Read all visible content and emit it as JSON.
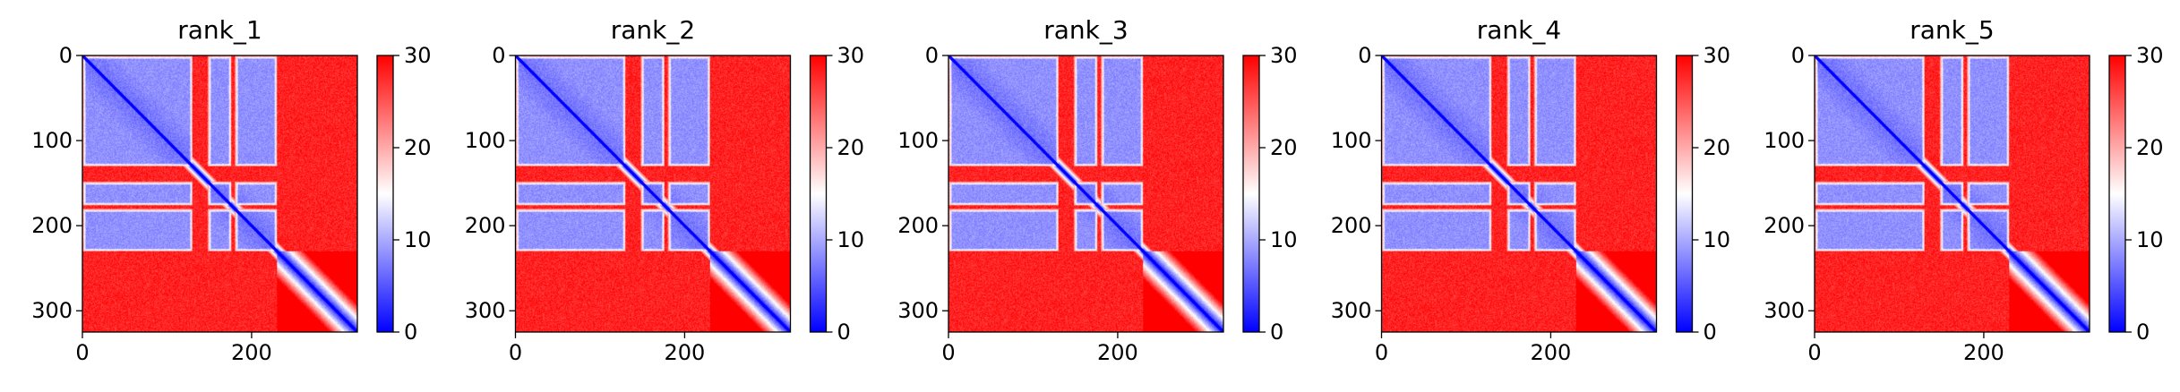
{
  "chart_data": [
    {
      "type": "heatmap",
      "title": "rank_1",
      "xlabel": "",
      "ylabel": "",
      "x_ticks": [
        0,
        200
      ],
      "y_ticks": [
        0,
        100,
        200,
        300
      ],
      "xlim": [
        0,
        325
      ],
      "ylim": [
        325,
        0
      ],
      "n_residues": 325,
      "colorbar": {
        "ticks": [
          0,
          10,
          20,
          30
        ],
        "range": [
          0,
          30
        ],
        "colormap": "bwr",
        "colors": [
          "#0000ff",
          "#ffffff",
          "#ff0000"
        ]
      },
      "blocks": [
        [
          0,
          130
        ],
        [
          148,
          176
        ],
        [
          180,
          230
        ]
      ],
      "far_value": 30,
      "block_value": 5,
      "diagonal_value": 0,
      "contact_threshold": 230
    },
    {
      "type": "heatmap",
      "title": "rank_2",
      "xlabel": "",
      "ylabel": "",
      "x_ticks": [
        0,
        200
      ],
      "y_ticks": [
        0,
        100,
        200,
        300
      ],
      "xlim": [
        0,
        325
      ],
      "ylim": [
        325,
        0
      ],
      "n_residues": 325,
      "colorbar": {
        "ticks": [
          0,
          10,
          20,
          30
        ],
        "range": [
          0,
          30
        ],
        "colormap": "bwr",
        "colors": [
          "#0000ff",
          "#ffffff",
          "#ff0000"
        ]
      },
      "blocks": [
        [
          0,
          130
        ],
        [
          148,
          176
        ],
        [
          180,
          230
        ]
      ],
      "far_value": 30,
      "block_value": 5,
      "diagonal_value": 0,
      "contact_threshold": 230
    },
    {
      "type": "heatmap",
      "title": "rank_3",
      "xlabel": "",
      "ylabel": "",
      "x_ticks": [
        0,
        200
      ],
      "y_ticks": [
        0,
        100,
        200,
        300
      ],
      "xlim": [
        0,
        325
      ],
      "ylim": [
        325,
        0
      ],
      "n_residues": 325,
      "colorbar": {
        "ticks": [
          0,
          10,
          20,
          30
        ],
        "range": [
          0,
          30
        ],
        "colormap": "bwr",
        "colors": [
          "#0000ff",
          "#ffffff",
          "#ff0000"
        ]
      },
      "blocks": [
        [
          0,
          130
        ],
        [
          148,
          176
        ],
        [
          180,
          230
        ]
      ],
      "far_value": 30,
      "block_value": 5,
      "diagonal_value": 0,
      "contact_threshold": 230
    },
    {
      "type": "heatmap",
      "title": "rank_4",
      "xlabel": "",
      "ylabel": "",
      "x_ticks": [
        0,
        200
      ],
      "y_ticks": [
        0,
        100,
        200,
        300
      ],
      "xlim": [
        0,
        325
      ],
      "ylim": [
        325,
        0
      ],
      "n_residues": 325,
      "colorbar": {
        "ticks": [
          0,
          10,
          20,
          30
        ],
        "range": [
          0,
          30
        ],
        "colormap": "bwr",
        "colors": [
          "#0000ff",
          "#ffffff",
          "#ff0000"
        ]
      },
      "blocks": [
        [
          0,
          130
        ],
        [
          148,
          176
        ],
        [
          180,
          230
        ]
      ],
      "far_value": 30,
      "block_value": 5,
      "diagonal_value": 0,
      "contact_threshold": 230
    },
    {
      "type": "heatmap",
      "title": "rank_5",
      "xlabel": "",
      "ylabel": "",
      "x_ticks": [
        0,
        200
      ],
      "y_ticks": [
        0,
        100,
        200,
        300
      ],
      "xlim": [
        0,
        325
      ],
      "ylim": [
        325,
        0
      ],
      "n_residues": 325,
      "colorbar": {
        "ticks": [
          0,
          10,
          20,
          30
        ],
        "range": [
          0,
          30
        ],
        "colormap": "bwr",
        "colors": [
          "#0000ff",
          "#ffffff",
          "#ff0000"
        ]
      },
      "blocks": [
        [
          0,
          130
        ],
        [
          148,
          176
        ],
        [
          180,
          230
        ]
      ],
      "far_value": 30,
      "block_value": 5,
      "diagonal_value": 0,
      "contact_threshold": 230
    }
  ]
}
